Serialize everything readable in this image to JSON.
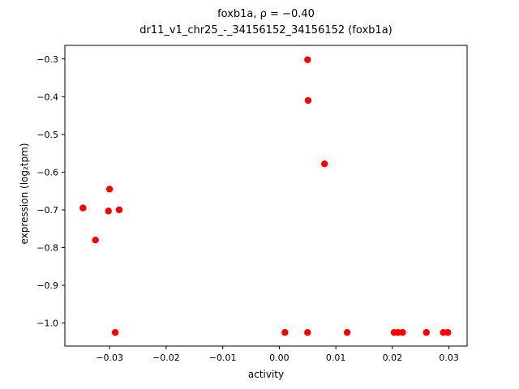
{
  "figure": {
    "title_line1": "foxb1a, ρ = −0.40",
    "title_line2": "dr11_v1_chr25_-_34156152_34156152 (foxb1a)",
    "xlabel": "activity",
    "ylabel": "expression (log₂tpm)"
  },
  "chart_data": {
    "type": "scatter",
    "title": "foxb1a, ρ = −0.40 / dr11_v1_chr25_-_34156152_34156152 (foxb1a)",
    "xlabel": "activity",
    "ylabel": "expression (log2 tpm)",
    "legend": "none",
    "grid": false,
    "marker_color": "#ff0000",
    "axis_color": "#000000",
    "xlim": [
      -0.0379,
      0.0332
    ],
    "ylim": [
      -1.061,
      -0.264
    ],
    "xticks": [
      -0.03,
      -0.02,
      -0.01,
      0.0,
      0.01,
      0.02,
      0.03
    ],
    "xtick_labels": [
      "−0.03",
      "−0.02",
      "−0.01",
      "0.00",
      "0.01",
      "0.02",
      "0.03"
    ],
    "yticks": [
      -0.3,
      -0.4,
      -0.5,
      -0.6,
      -0.7,
      -0.8,
      -0.9,
      -1.0
    ],
    "ytick_labels": [
      "−0.3",
      "−0.4",
      "−0.5",
      "−0.6",
      "−0.7",
      "−0.8",
      "−0.9",
      "−1.0"
    ],
    "points": [
      {
        "x": -0.0347,
        "y": -0.695
      },
      {
        "x": -0.0325,
        "y": -0.78
      },
      {
        "x": -0.03,
        "y": -0.645
      },
      {
        "x": -0.0302,
        "y": -0.703
      },
      {
        "x": -0.0283,
        "y": -0.7
      },
      {
        "x": -0.029,
        "y": -1.025
      },
      {
        "x": 0.001,
        "y": -1.025
      },
      {
        "x": 0.005,
        "y": -0.302
      },
      {
        "x": 0.0051,
        "y": -0.41
      },
      {
        "x": 0.005,
        "y": -1.025
      },
      {
        "x": 0.008,
        "y": -0.578
      },
      {
        "x": 0.012,
        "y": -1.025
      },
      {
        "x": 0.0203,
        "y": -1.025
      },
      {
        "x": 0.021,
        "y": -1.025
      },
      {
        "x": 0.0218,
        "y": -1.025
      },
      {
        "x": 0.026,
        "y": -1.025
      },
      {
        "x": 0.029,
        "y": -1.025
      },
      {
        "x": 0.0298,
        "y": -1.025
      }
    ]
  }
}
